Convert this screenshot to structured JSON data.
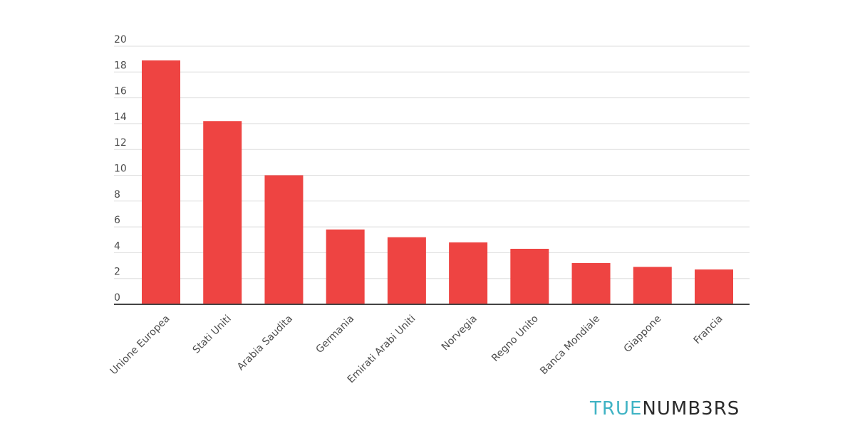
{
  "chart_data": {
    "type": "bar",
    "categories": [
      "Unione Europea",
      "Stati Uniti",
      "Arabia Saudita",
      "Germania",
      "Emirati Arabi Uniti",
      "Norvegia",
      "Regno Unito",
      "Banca Mondiale",
      "Giappone",
      "Francia"
    ],
    "values": [
      18.9,
      14.2,
      10.0,
      5.8,
      5.2,
      4.8,
      4.3,
      3.2,
      2.9,
      2.7
    ],
    "yticks": [
      0,
      2,
      4,
      6,
      8,
      10,
      12,
      14,
      16,
      18,
      20
    ],
    "ylim": [
      0,
      20
    ],
    "grid": true,
    "bar_color": "#ee4442"
  },
  "logo": {
    "part1": "TRUE",
    "part2": "NUMB3RS",
    "color1": "#3fb3c4",
    "color2": "#2b2b2b"
  }
}
